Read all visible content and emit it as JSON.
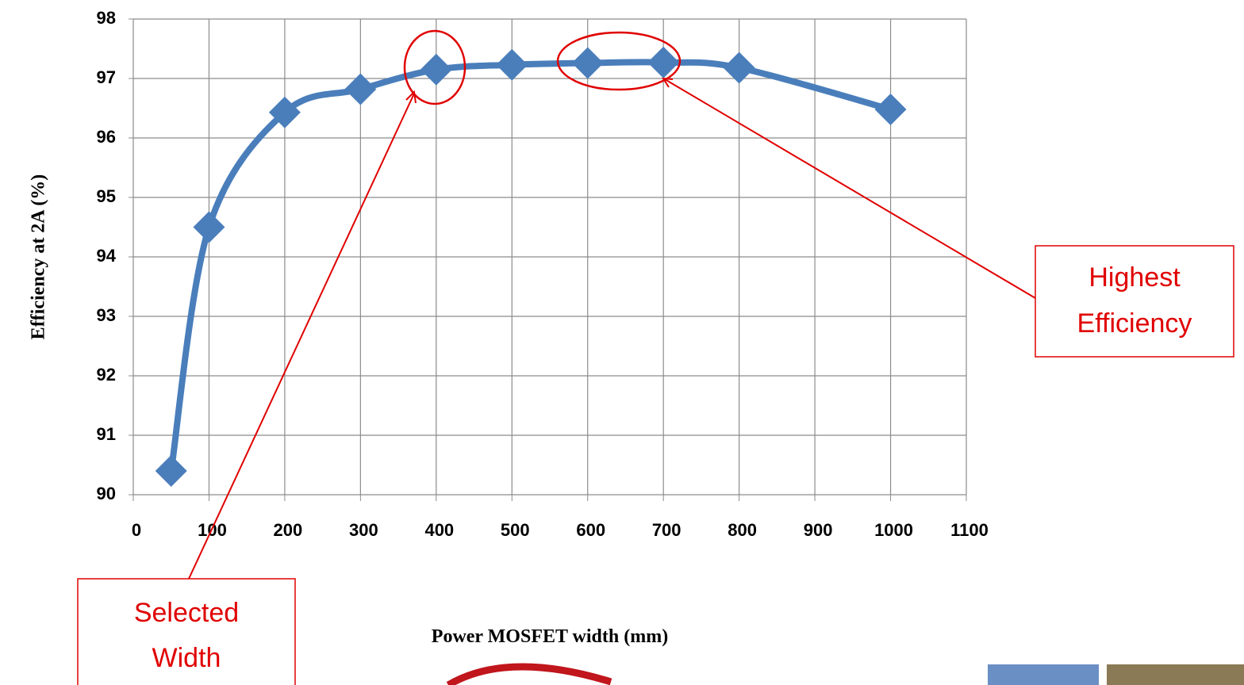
{
  "chart_data": {
    "type": "line",
    "x_label": "Power MOSFET width (mm)",
    "y_label": "Efficiency at 2A (%)",
    "x": [
      50,
      100,
      200,
      300,
      400,
      500,
      600,
      700,
      800,
      1000
    ],
    "series": [
      {
        "color": "#4a7ebb",
        "values": [
          90.4,
          94.5,
          96.43,
          96.82,
          97.15,
          97.23,
          97.26,
          97.27,
          97.18,
          96.48
        ]
      }
    ],
    "xlim": [
      0,
      1100
    ],
    "xticks": [
      0,
      100,
      200,
      300,
      400,
      500,
      600,
      700,
      800,
      900,
      1000,
      1100
    ],
    "ylim": [
      90,
      98
    ],
    "yticks": [
      90,
      91,
      92,
      93,
      94,
      95,
      96,
      97,
      98
    ],
    "grid": true,
    "annotations": [
      {
        "text": [
          "Highest",
          "Efficiency"
        ]
      },
      {
        "text": [
          "Selected",
          "Width"
        ]
      }
    ]
  }
}
